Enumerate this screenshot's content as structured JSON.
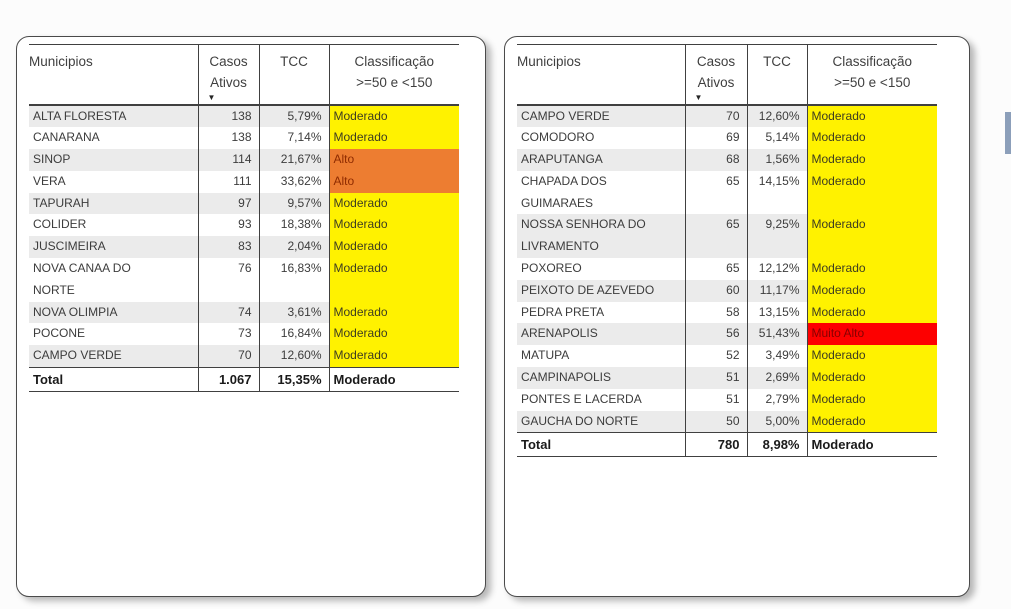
{
  "header": {
    "municipios": "Municipios",
    "casos_line1": "Casos",
    "casos_line2": "Ativos",
    "sort_indicator": "▼",
    "tcc": "TCC",
    "class_line1": "Classificação",
    "class_line2": ">=50 e <150"
  },
  "colors": {
    "moderado": {
      "bg": "#FFF200",
      "text": "#3e3d20"
    },
    "alto": {
      "bg": "#ED7D31",
      "text": "#8f2b00"
    },
    "muito_alto": {
      "bg": "#FD0000",
      "text": "#860000"
    }
  },
  "tables": [
    {
      "rows": [
        {
          "name": "ALTA FLORESTA",
          "casos": "138",
          "tcc": "5,79%",
          "classificacao": "Moderado",
          "level": "moderado"
        },
        {
          "name": "CANARANA",
          "casos": "138",
          "tcc": "7,14%",
          "classificacao": "Moderado",
          "level": "moderado"
        },
        {
          "name": "SINOP",
          "casos": "114",
          "tcc": "21,67%",
          "classificacao": "Alto",
          "level": "alto"
        },
        {
          "name": "VERA",
          "casos": "111",
          "tcc": "33,62%",
          "classificacao": "Alto",
          "level": "alto"
        },
        {
          "name": "TAPURAH",
          "casos": "97",
          "tcc": "9,57%",
          "classificacao": "Moderado",
          "level": "moderado"
        },
        {
          "name": "COLIDER",
          "casos": "93",
          "tcc": "18,38%",
          "classificacao": "Moderado",
          "level": "moderado"
        },
        {
          "name": "JUSCIMEIRA",
          "casos": "83",
          "tcc": "2,04%",
          "classificacao": "Moderado",
          "level": "moderado"
        },
        {
          "name": "NOVA CANAA DO\nNORTE",
          "casos": "76",
          "tcc": "16,83%",
          "classificacao": "Moderado",
          "level": "moderado"
        },
        {
          "name": "NOVA OLIMPIA",
          "casos": "74",
          "tcc": "3,61%",
          "classificacao": "Moderado",
          "level": "moderado"
        },
        {
          "name": "POCONE",
          "casos": "73",
          "tcc": "16,84%",
          "classificacao": "Moderado",
          "level": "moderado"
        },
        {
          "name": "CAMPO VERDE",
          "casos": "70",
          "tcc": "12,60%",
          "classificacao": "Moderado",
          "level": "moderado"
        }
      ],
      "total": {
        "label": "Total",
        "casos": "1.067",
        "tcc": "15,35%",
        "classificacao": "Moderado"
      }
    },
    {
      "rows": [
        {
          "name": "CAMPO VERDE",
          "casos": "70",
          "tcc": "12,60%",
          "classificacao": "Moderado",
          "level": "moderado"
        },
        {
          "name": "COMODORO",
          "casos": "69",
          "tcc": "5,14%",
          "classificacao": "Moderado",
          "level": "moderado"
        },
        {
          "name": "ARAPUTANGA",
          "casos": "68",
          "tcc": "1,56%",
          "classificacao": "Moderado",
          "level": "moderado"
        },
        {
          "name": "CHAPADA DOS\nGUIMARAES",
          "casos": "65",
          "tcc": "14,15%",
          "classificacao": "Moderado",
          "level": "moderado"
        },
        {
          "name": "NOSSA SENHORA DO\nLIVRAMENTO",
          "casos": "65",
          "tcc": "9,25%",
          "classificacao": "Moderado",
          "level": "moderado"
        },
        {
          "name": "POXOREO",
          "casos": "65",
          "tcc": "12,12%",
          "classificacao": "Moderado",
          "level": "moderado"
        },
        {
          "name": "PEIXOTO DE AZEVEDO",
          "casos": "60",
          "tcc": "11,17%",
          "classificacao": "Moderado",
          "level": "moderado"
        },
        {
          "name": "PEDRA PRETA",
          "casos": "58",
          "tcc": "13,15%",
          "classificacao": "Moderado",
          "level": "moderado"
        },
        {
          "name": "ARENAPOLIS",
          "casos": "56",
          "tcc": "51,43%",
          "classificacao": "Muito Alto",
          "level": "muito_alto"
        },
        {
          "name": "MATUPA",
          "casos": "52",
          "tcc": "3,49%",
          "classificacao": "Moderado",
          "level": "moderado"
        },
        {
          "name": "CAMPINAPOLIS",
          "casos": "51",
          "tcc": "2,69%",
          "classificacao": "Moderado",
          "level": "moderado"
        },
        {
          "name": "PONTES E LACERDA",
          "casos": "51",
          "tcc": "2,79%",
          "classificacao": "Moderado",
          "level": "moderado"
        },
        {
          "name": "GAUCHA DO NORTE",
          "casos": "50",
          "tcc": "5,00%",
          "classificacao": "Moderado",
          "level": "moderado"
        }
      ],
      "total": {
        "label": "Total",
        "casos": "780",
        "tcc": "8,98%",
        "classificacao": "Moderado"
      }
    }
  ]
}
